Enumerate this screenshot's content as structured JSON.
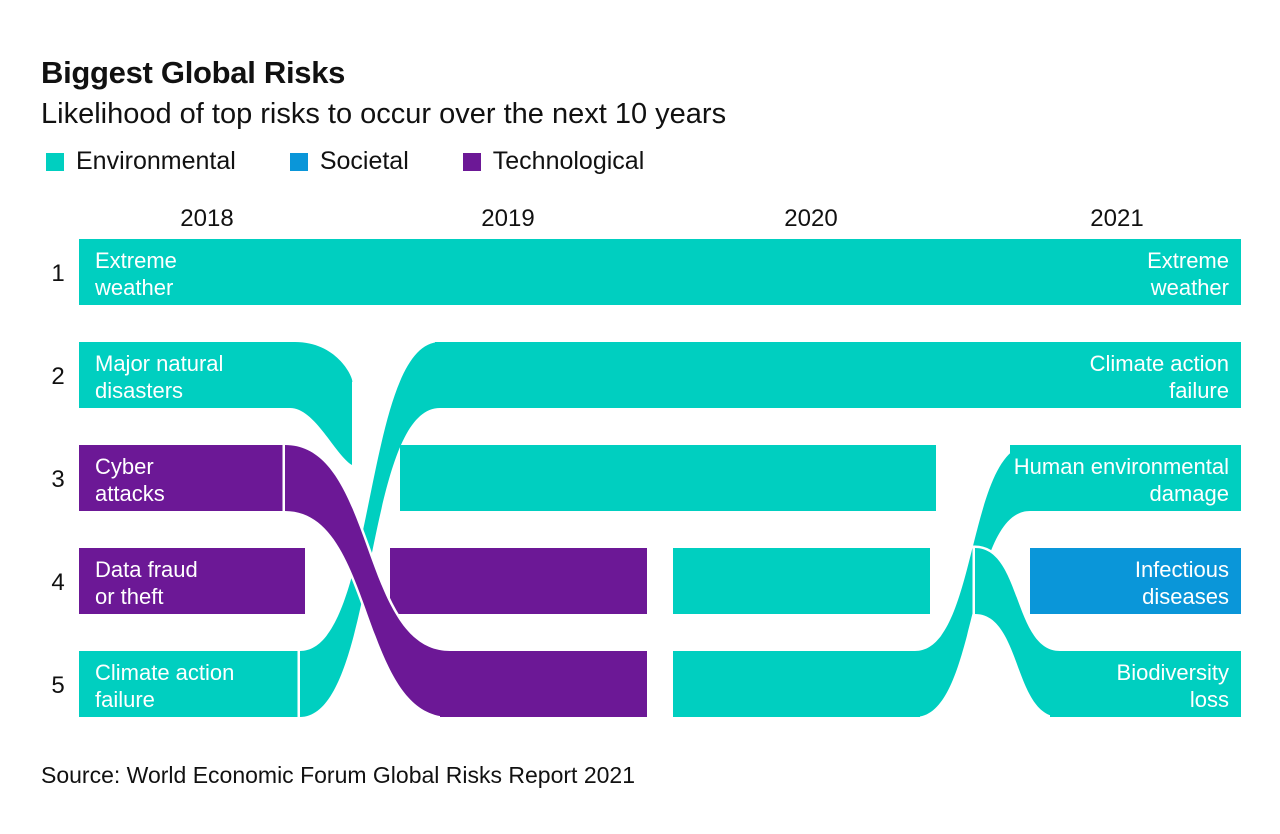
{
  "title": "Biggest Global Risks",
  "subtitle": "Likelihood of top risks to occur over the next 10 years",
  "legend": [
    {
      "label": "Environmental",
      "color": "#00CFC0"
    },
    {
      "label": "Societal",
      "color": "#0A96D9"
    },
    {
      "label": "Technological",
      "color": "#6C1896"
    }
  ],
  "source": "Source: World Economic Forum Global Risks Report 2021",
  "chart_data": {
    "type": "bump",
    "years": [
      "2018",
      "2019",
      "2020",
      "2021"
    ],
    "ranks": [
      "1",
      "2",
      "3",
      "4",
      "5"
    ],
    "categories": {
      "Environmental": "#00CFC0",
      "Societal": "#0A96D9",
      "Technological": "#6C1896"
    },
    "series": [
      {
        "name": "Extreme weather",
        "category": "Environmental",
        "ranks": [
          1,
          1,
          1,
          1
        ]
      },
      {
        "name": "Major natural disasters",
        "category": "Environmental",
        "ranks": [
          2,
          null,
          null,
          null
        ]
      },
      {
        "name": "Climate action failure",
        "category": "Environmental",
        "ranks": [
          5,
          2,
          2,
          2
        ]
      },
      {
        "name": "Cyber attacks",
        "category": "Technological",
        "ranks": [
          3,
          5,
          null,
          null
        ]
      },
      {
        "name": "Data fraud or theft",
        "category": "Technological",
        "ranks": [
          4,
          4,
          null,
          null
        ]
      },
      {
        "name": "Human environmental damage",
        "category": "Environmental",
        "ranks": [
          null,
          null,
          5,
          3
        ]
      },
      {
        "name": "Infectious diseases",
        "category": "Societal",
        "ranks": [
          null,
          null,
          null,
          4
        ]
      },
      {
        "name": "Biodiversity loss",
        "category": "Environmental",
        "ranks": [
          null,
          null,
          4,
          5
        ]
      }
    ],
    "left_labels": [
      {
        "rank": 1,
        "lines": [
          "Extreme",
          "weather"
        ]
      },
      {
        "rank": 2,
        "lines": [
          "Major natural",
          "disasters"
        ]
      },
      {
        "rank": 3,
        "lines": [
          "Cyber",
          "attacks"
        ]
      },
      {
        "rank": 4,
        "lines": [
          "Data fraud",
          "or theft"
        ]
      },
      {
        "rank": 5,
        "lines": [
          "Climate action",
          "failure"
        ]
      }
    ],
    "right_labels": [
      {
        "rank": 1,
        "lines": [
          "Extreme",
          "weather"
        ]
      },
      {
        "rank": 2,
        "lines": [
          "Climate action",
          "failure"
        ]
      },
      {
        "rank": 3,
        "lines": [
          "Human environmental",
          "damage"
        ]
      },
      {
        "rank": 4,
        "lines": [
          "Infectious",
          "diseases"
        ]
      },
      {
        "rank": 5,
        "lines": [
          "Biodiversity",
          "loss"
        ]
      }
    ]
  }
}
